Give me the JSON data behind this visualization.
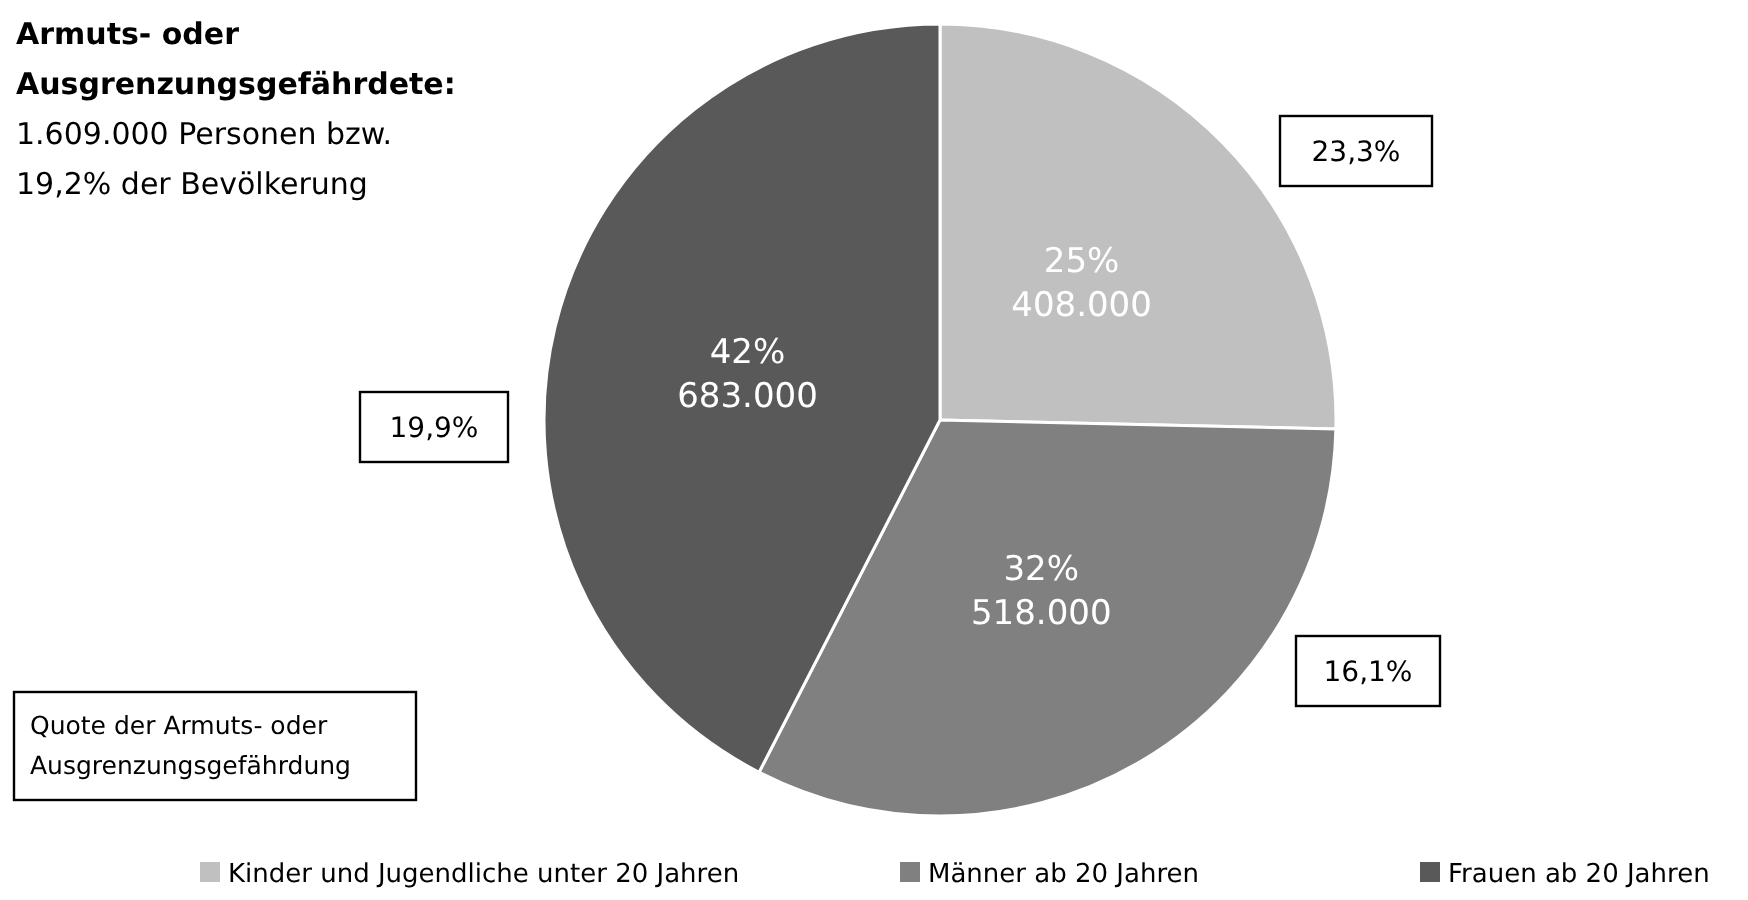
{
  "chart_data": {
    "type": "pie",
    "title": "Armuts- oder\nAusgrenzungsgefährdete:",
    "subtitle": "1.609.000 Personen bzw.\n19,2% der Bevölkerung",
    "categories": [
      "Kinder und Jugendliche unter 20 Jahren",
      "Männer ab 20 Jahren",
      "Frauen ab 20 Jahren"
    ],
    "values": [
      408000,
      518000,
      683000
    ],
    "value_labels": [
      "25%\n408.000",
      "32%\n518.000",
      "42%\n683.000"
    ],
    "colors": [
      "#c0c0c0",
      "#808080",
      "#595959"
    ],
    "annotations": [
      "23,3%",
      "16,1%",
      "19,9%",
      "Quote der Armuts- oder\nAusgrenzungsgefährdung"
    ],
    "legend": "bottom"
  }
}
